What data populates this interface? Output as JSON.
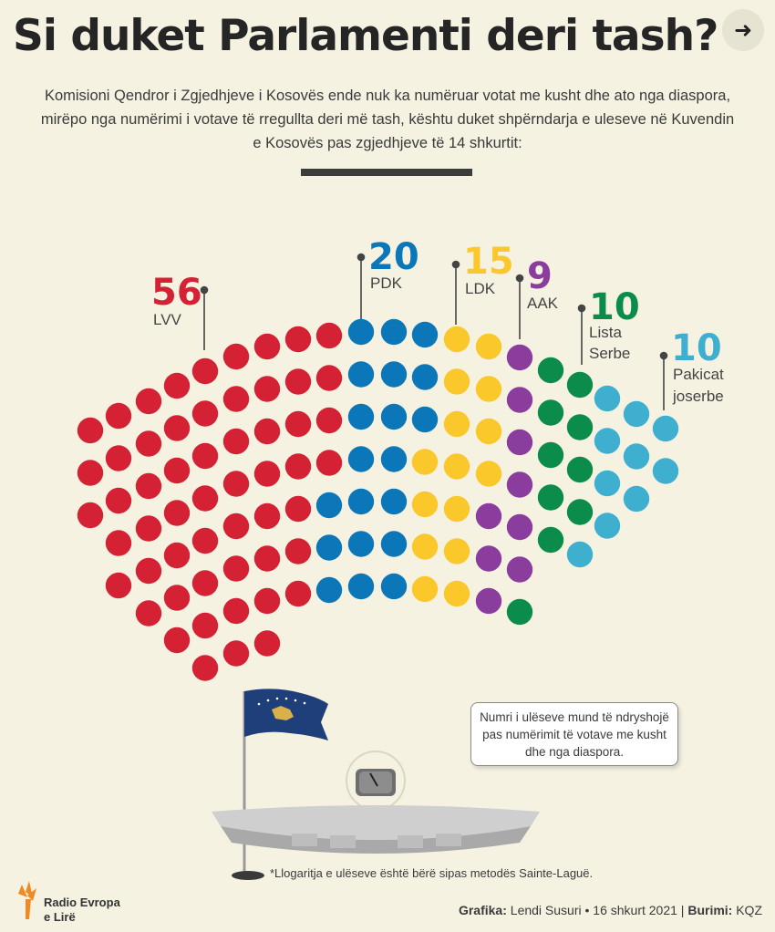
{
  "header": {
    "title": "Si duket Parlamenti deri tash?",
    "intro": "Komisioni Qendror i Zgjedhjeve i Kosovës ende nuk ka numëruar votat me kusht dhe ato nga diaspora, mirëpo nga numërimi i votave të rregullta deri më tash, kështu duket shpërndarja e uleseve në Kuvendin e Kosovës pas zgjedhjeve të 14 shkurtit:"
  },
  "chart_data": {
    "type": "parliament",
    "total_seats": 120,
    "parties": [
      {
        "name": "LVV",
        "seats": 56,
        "color": "#d42134"
      },
      {
        "name": "PDK",
        "seats": 20,
        "color": "#0b77b8"
      },
      {
        "name": "LDK",
        "seats": 15,
        "color": "#fbc82c"
      },
      {
        "name": "AAK",
        "seats": 9,
        "color": "#8b3d9d"
      },
      {
        "name": "Lista Serbe",
        "seats": 10,
        "color": "#0b8c4a"
      },
      {
        "name": "Pakicat joserbe",
        "seats": 10,
        "color": "#3eafcf"
      }
    ]
  },
  "labels": {
    "lvv_num": "56",
    "lvv_name": "LVV",
    "pdk_num": "20",
    "pdk_name": "PDK",
    "ldk_num": "15",
    "ldk_name": "LDK",
    "aak_num": "9",
    "aak_name": "AAK",
    "ls_num": "10",
    "ls_name_1": "Lista",
    "ls_name_2": "Serbe",
    "pj_num": "10",
    "pj_name_1": "Pakicat",
    "pj_name_2": "joserbe"
  },
  "note": "Numri i ulëseve mund të ndryshojë pas numërimit të votave me kusht dhe nga diaspora.",
  "footnote": "*Llogaritja e ulëseve është bërë sipas metodës Sainte-Laguë.",
  "credits": {
    "graphic_label": "Grafika:",
    "graphic_value": " Lendi Susuri • 16 shkurt 2021 | ",
    "source_label": "Burimi:",
    "source_value": " KQZ"
  },
  "logo": {
    "line1": "Radio Evropa",
    "line2": "e Lirë"
  },
  "colors": {
    "background": "#f5f2e2",
    "text": "#2b2b2b"
  }
}
